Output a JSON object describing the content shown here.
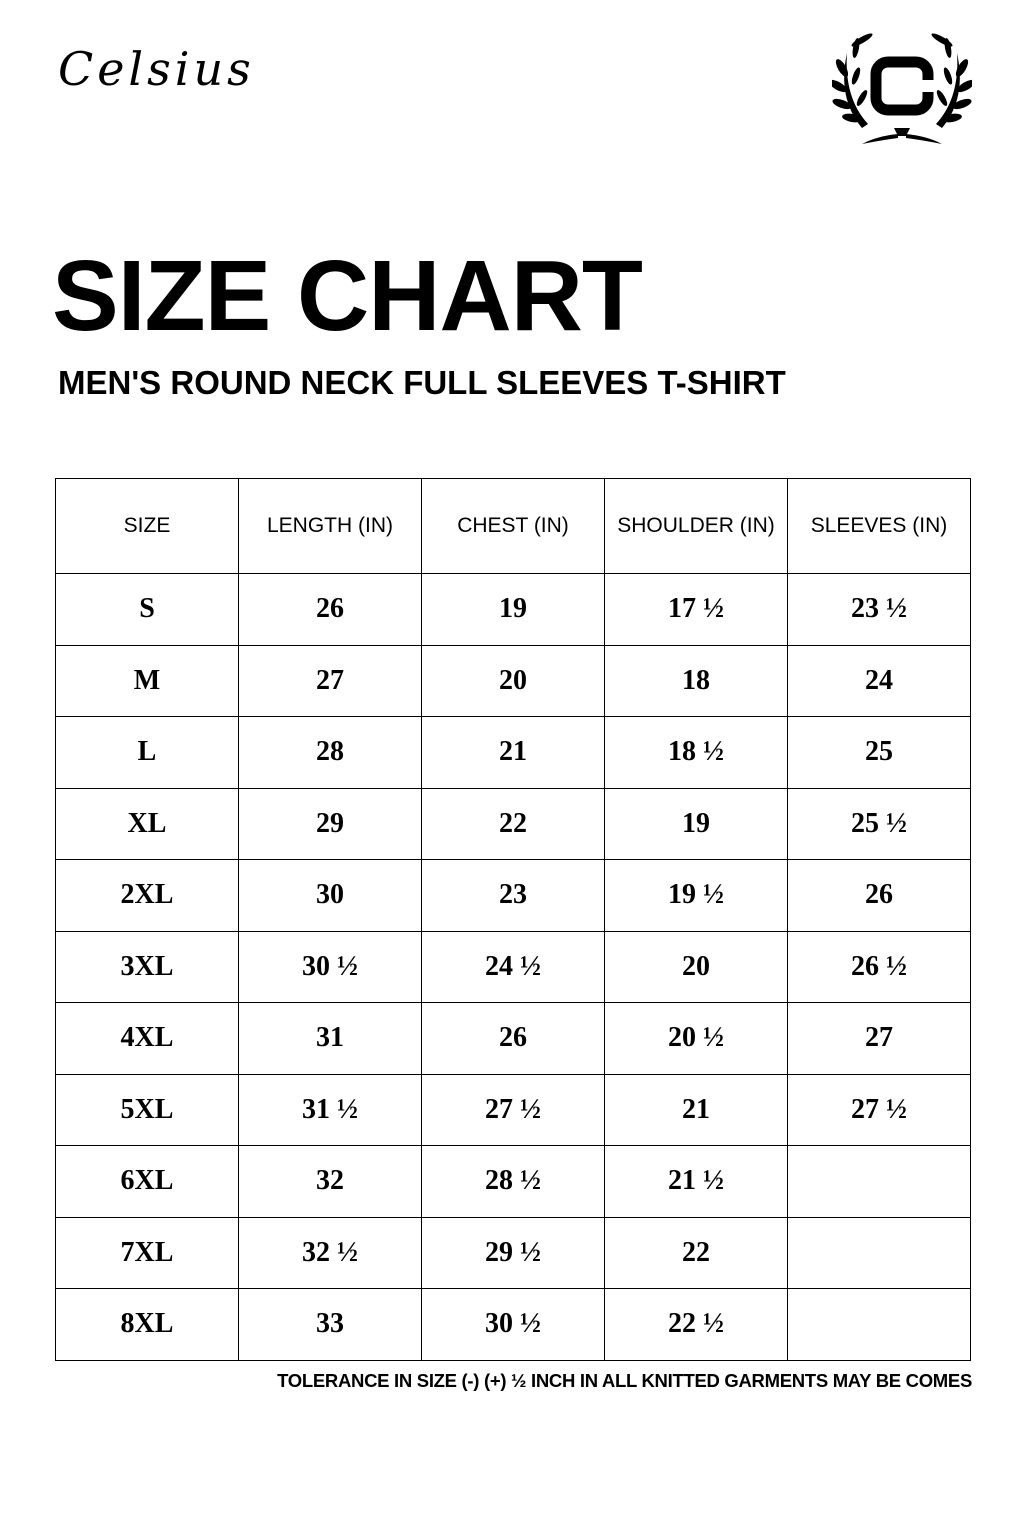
{
  "brand": {
    "name": "Celsius",
    "logo_letter": "C"
  },
  "title": "SIZE CHART",
  "subtitle": "MEN'S ROUND NECK FULL SLEEVES T-SHIRT",
  "table": {
    "headers": [
      "SIZE",
      "LENGTH (IN)",
      "CHEST (IN)",
      "SHOULDER (IN)",
      "SLEEVES (IN)"
    ],
    "rows": [
      [
        "S",
        "26",
        "19",
        "17 ½",
        "23 ½"
      ],
      [
        "M",
        "27",
        "20",
        "18",
        "24"
      ],
      [
        "L",
        "28",
        "21",
        "18 ½",
        "25"
      ],
      [
        "XL",
        "29",
        "22",
        "19",
        "25 ½"
      ],
      [
        "2XL",
        "30",
        "23",
        "19 ½",
        "26"
      ],
      [
        "3XL",
        "30 ½",
        "24 ½",
        "20",
        "26 ½"
      ],
      [
        "4XL",
        "31",
        "26",
        "20 ½",
        "27"
      ],
      [
        "5XL",
        "31 ½",
        "27 ½",
        "21",
        "27 ½"
      ],
      [
        "6XL",
        "32",
        "28 ½",
        "21 ½",
        ""
      ],
      [
        "7XL",
        "32 ½",
        "29 ½",
        "22",
        ""
      ],
      [
        "8XL",
        "33",
        "30 ½",
        "22 ½",
        ""
      ]
    ]
  },
  "note": "TOLERANCE IN SIZE (-) (+)  ½ INCH IN ALL KNITTED GARMENTS MAY BE COMES"
}
